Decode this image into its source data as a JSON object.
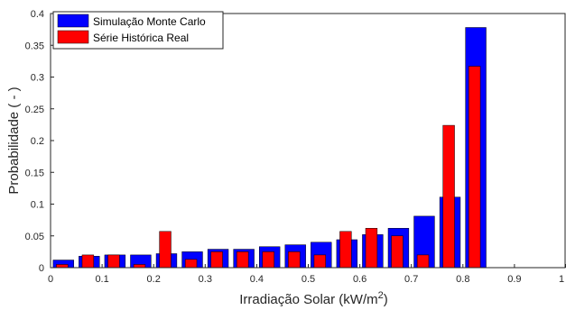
{
  "chart_data": {
    "type": "bar",
    "xlabel_main": "Irradiação Solar (kW/m",
    "xlabel_sup": "2",
    "xlabel_end": ")",
    "ylabel": "Probabilidade ( - )",
    "xlim": [
      0,
      1
    ],
    "ylim": [
      0,
      0.4
    ],
    "x_ticks": [
      0,
      0.1,
      0.2,
      0.3,
      0.4,
      0.5,
      0.6,
      0.7,
      0.8,
      0.9,
      1
    ],
    "x_tick_labels": [
      "0",
      "0.1",
      "0.2",
      "0.3",
      "0.4",
      "0.5",
      "0.6",
      "0.7",
      "0.8",
      "0.9",
      "1"
    ],
    "y_ticks": [
      0,
      0.05,
      0.1,
      0.15,
      0.2,
      0.25,
      0.3,
      0.35,
      0.4
    ],
    "y_tick_labels": [
      "0",
      "0.05",
      "0.1",
      "0.15",
      "0.2",
      "0.25",
      "0.3",
      "0.35",
      "0.4"
    ],
    "legend_position": "top-left",
    "grid": false,
    "x": [
      0.025,
      0.075,
      0.125,
      0.175,
      0.225,
      0.275,
      0.325,
      0.375,
      0.425,
      0.475,
      0.525,
      0.575,
      0.625,
      0.675,
      0.725,
      0.775,
      0.825
    ],
    "series": [
      {
        "name": "Simulação Monte Carlo",
        "color": "#0000ff",
        "values": [
          0.012,
          0.018,
          0.02,
          0.02,
          0.022,
          0.025,
          0.029,
          0.029,
          0.033,
          0.036,
          0.04,
          0.044,
          0.052,
          0.062,
          0.081,
          0.111,
          0.378
        ]
      },
      {
        "name": "Série Histórica Real",
        "color": "#ff0000",
        "values": [
          0.005,
          0.02,
          0.02,
          0.005,
          0.057,
          0.013,
          0.025,
          0.025,
          0.025,
          0.025,
          0.02,
          0.057,
          0.062,
          0.05,
          0.02,
          0.224,
          0.317
        ]
      }
    ]
  }
}
